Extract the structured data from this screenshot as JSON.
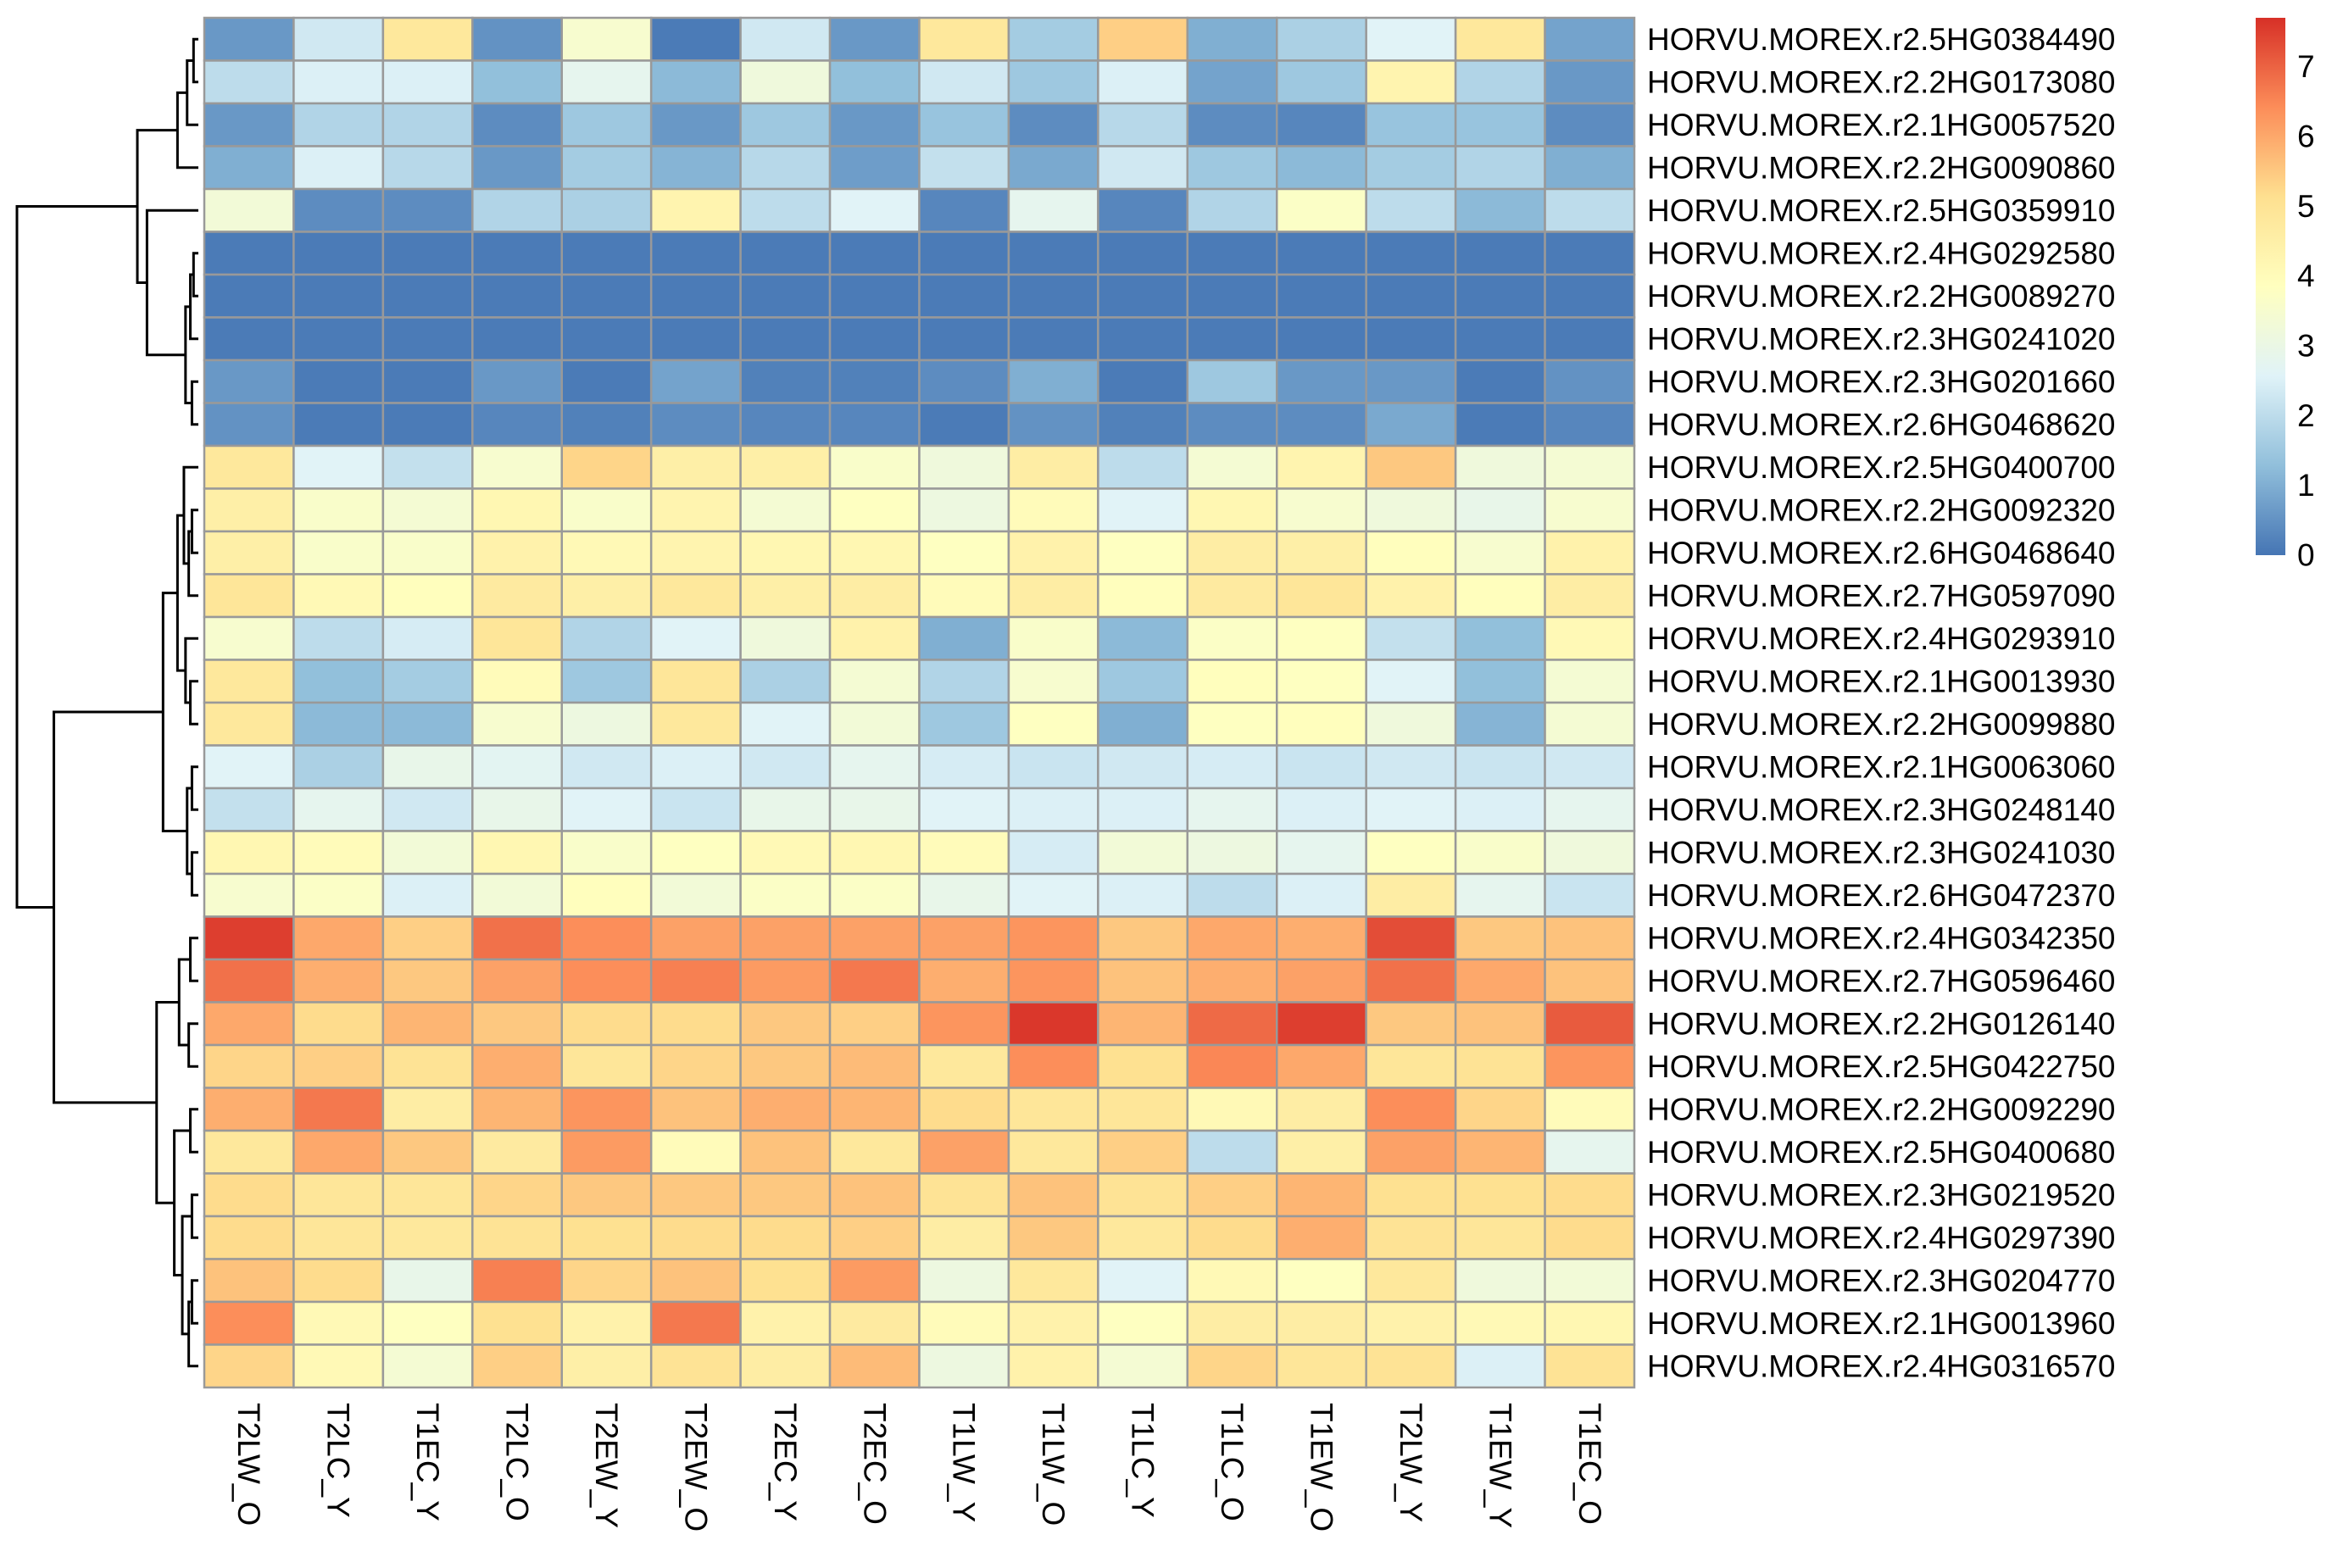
{
  "chart_data": {
    "type": "heatmap",
    "title": "",
    "columns": [
      "T2LW_O",
      "T2LC_Y",
      "T1EC_Y",
      "T2LC_O",
      "T2EW_Y",
      "T2EW_O",
      "T2EC_Y",
      "T2EC_O",
      "T1LW_Y",
      "T1LW_O",
      "T1LC_Y",
      "T1LC_O",
      "T1EW_O",
      "T2LW_Y",
      "T1EW_Y",
      "T1EC_O"
    ],
    "rows": [
      "HORVU.MOREX.r2.5HG0384490",
      "HORVU.MOREX.r2.2HG0173080",
      "HORVU.MOREX.r2.1HG0057520",
      "HORVU.MOREX.r2.2HG0090860",
      "HORVU.MOREX.r2.5HG0359910",
      "HORVU.MOREX.r2.4HG0292580",
      "HORVU.MOREX.r2.2HG0089270",
      "HORVU.MOREX.r2.3HG0241020",
      "HORVU.MOREX.r2.3HG0201660",
      "HORVU.MOREX.r2.6HG0468620",
      "HORVU.MOREX.r2.5HG0400700",
      "HORVU.MOREX.r2.2HG0092320",
      "HORVU.MOREX.r2.6HG0468640",
      "HORVU.MOREX.r2.7HG0597090",
      "HORVU.MOREX.r2.4HG0293910",
      "HORVU.MOREX.r2.1HG0013930",
      "HORVU.MOREX.r2.2HG0099880",
      "HORVU.MOREX.r2.1HG0063060",
      "HORVU.MOREX.r2.3HG0248140",
      "HORVU.MOREX.r2.3HG0241030",
      "HORVU.MOREX.r2.6HG0472370",
      "HORVU.MOREX.r2.4HG0342350",
      "HORVU.MOREX.r2.7HG0596460",
      "HORVU.MOREX.r2.2HG0126140",
      "HORVU.MOREX.r2.5HG0422750",
      "HORVU.MOREX.r2.2HG0092290",
      "HORVU.MOREX.r2.5HG0400680",
      "HORVU.MOREX.r2.3HG0219520",
      "HORVU.MOREX.r2.4HG0297390",
      "HORVU.MOREX.r2.3HG0204770",
      "HORVU.MOREX.r2.1HG0013960",
      "HORVU.MOREX.r2.4HG0316570"
    ],
    "values": [
      [
        0.6,
        2.3,
        4.8,
        0.5,
        3.5,
        0.1,
        2.3,
        0.6,
        4.8,
        1.6,
        5.4,
        1.0,
        1.7,
        2.6,
        4.8,
        0.8
      ],
      [
        2.0,
        2.5,
        2.5,
        1.3,
        2.8,
        1.2,
        3.2,
        1.3,
        2.3,
        1.5,
        2.5,
        0.8,
        1.5,
        4.3,
        1.8,
        0.6
      ],
      [
        0.6,
        1.8,
        1.8,
        0.4,
        1.5,
        0.6,
        1.5,
        0.6,
        1.4,
        0.4,
        1.9,
        0.4,
        0.3,
        1.4,
        1.4,
        0.4
      ],
      [
        1.0,
        2.5,
        1.9,
        0.6,
        1.6,
        1.1,
        1.9,
        0.7,
        2.1,
        0.9,
        2.3,
        1.5,
        1.2,
        1.6,
        1.8,
        1.0
      ],
      [
        3.3,
        0.4,
        0.4,
        1.8,
        1.7,
        4.3,
        2.0,
        2.6,
        0.3,
        2.8,
        0.3,
        1.8,
        3.7,
        2.0,
        1.2,
        2.0
      ],
      [
        0.1,
        0.1,
        0.1,
        0.1,
        0.1,
        0.1,
        0.1,
        0.1,
        0.1,
        0.1,
        0.1,
        0.1,
        0.1,
        0.1,
        0.1,
        0.1
      ],
      [
        0.1,
        0.1,
        0.1,
        0.1,
        0.1,
        0.1,
        0.1,
        0.1,
        0.1,
        0.1,
        0.1,
        0.1,
        0.1,
        0.1,
        0.1,
        0.1
      ],
      [
        0.1,
        0.1,
        0.1,
        0.1,
        0.1,
        0.1,
        0.1,
        0.1,
        0.1,
        0.1,
        0.1,
        0.1,
        0.1,
        0.1,
        0.1,
        0.1
      ],
      [
        0.6,
        0.1,
        0.1,
        0.6,
        0.1,
        0.8,
        0.2,
        0.2,
        0.4,
        1.0,
        0.1,
        1.5,
        0.6,
        0.6,
        0.1,
        0.5
      ],
      [
        0.5,
        0.1,
        0.1,
        0.3,
        0.2,
        0.4,
        0.3,
        0.3,
        0.1,
        0.5,
        0.2,
        0.4,
        0.4,
        0.9,
        0.1,
        0.3
      ],
      [
        4.8,
        2.6,
        2.1,
        3.5,
        5.3,
        4.5,
        4.5,
        3.6,
        3.2,
        4.6,
        2.0,
        3.4,
        4.3,
        5.5,
        3.2,
        3.4
      ],
      [
        4.5,
        3.6,
        3.4,
        4.2,
        3.6,
        4.3,
        3.4,
        3.8,
        3.1,
        4.0,
        2.6,
        4.2,
        3.5,
        3.2,
        2.9,
        3.5
      ],
      [
        4.5,
        3.6,
        3.6,
        4.4,
        4.1,
        4.3,
        4.2,
        4.2,
        3.8,
        4.4,
        3.8,
        4.6,
        4.5,
        3.9,
        3.5,
        4.4
      ],
      [
        4.9,
        4.1,
        3.9,
        4.7,
        4.5,
        4.8,
        4.5,
        4.6,
        4.0,
        4.6,
        3.9,
        4.7,
        4.9,
        4.4,
        3.9,
        4.6
      ],
      [
        3.5,
        2.0,
        2.4,
        4.9,
        1.8,
        2.6,
        3.2,
        4.4,
        1.0,
        3.6,
        1.2,
        3.7,
        3.8,
        2.1,
        1.3,
        4.1
      ],
      [
        4.8,
        1.3,
        1.6,
        4.0,
        1.5,
        4.9,
        1.7,
        3.4,
        1.8,
        3.5,
        1.5,
        3.9,
        3.8,
        2.6,
        1.3,
        3.4
      ],
      [
        4.8,
        1.2,
        1.2,
        3.5,
        3.1,
        4.8,
        2.6,
        3.3,
        1.5,
        3.8,
        1.0,
        3.8,
        3.9,
        3.2,
        1.1,
        3.4
      ],
      [
        2.6,
        1.7,
        2.9,
        2.7,
        2.3,
        2.5,
        2.3,
        2.8,
        2.4,
        2.2,
        2.3,
        2.4,
        2.2,
        2.3,
        2.2,
        2.3
      ],
      [
        2.1,
        2.8,
        2.3,
        2.9,
        2.6,
        2.2,
        2.9,
        2.9,
        2.6,
        2.5,
        2.5,
        2.8,
        2.5,
        2.6,
        2.5,
        2.8
      ],
      [
        4.2,
        4.0,
        3.3,
        4.2,
        3.6,
        3.8,
        4.1,
        4.2,
        4.0,
        2.4,
        3.3,
        3.1,
        2.8,
        3.8,
        3.6,
        3.2
      ],
      [
        3.5,
        3.7,
        2.5,
        3.3,
        3.9,
        3.3,
        3.7,
        3.7,
        2.9,
        2.6,
        2.5,
        2.0,
        2.5,
        4.6,
        2.8,
        2.2
      ],
      [
        7.5,
        6.0,
        5.4,
        6.8,
        6.4,
        6.1,
        6.1,
        6.1,
        6.1,
        6.3,
        5.5,
        6.0,
        5.9,
        7.3,
        5.5,
        5.6
      ],
      [
        6.8,
        5.9,
        5.5,
        6.1,
        6.4,
        6.6,
        6.2,
        6.7,
        5.9,
        6.3,
        5.6,
        5.9,
        6.1,
        6.8,
        6.0,
        5.6
      ],
      [
        6.0,
        5.2,
        5.8,
        5.5,
        5.2,
        5.2,
        5.5,
        5.4,
        6.3,
        7.6,
        5.8,
        6.9,
        7.5,
        5.5,
        5.6,
        7.1
      ],
      [
        5.3,
        5.4,
        5.0,
        5.9,
        4.9,
        5.3,
        5.5,
        5.7,
        4.8,
        6.4,
        5.1,
        6.5,
        6.0,
        4.9,
        5.0,
        6.3
      ],
      [
        5.9,
        6.7,
        4.6,
        5.8,
        6.3,
        5.6,
        5.9,
        5.8,
        5.2,
        4.9,
        4.9,
        4.1,
        4.6,
        6.4,
        5.3,
        4.0
      ],
      [
        4.8,
        6.0,
        5.5,
        4.7,
        6.2,
        4.0,
        5.6,
        4.8,
        6.1,
        4.8,
        5.4,
        2.0,
        4.5,
        6.1,
        5.8,
        2.8
      ],
      [
        5.2,
        4.9,
        4.9,
        5.3,
        5.5,
        5.5,
        5.5,
        5.6,
        5.0,
        5.6,
        5.0,
        5.4,
        5.8,
        5.1,
        5.1,
        5.2
      ],
      [
        5.2,
        4.9,
        4.8,
        5.0,
        5.1,
        5.2,
        5.2,
        5.4,
        4.6,
        5.5,
        4.8,
        5.2,
        5.9,
        5.0,
        4.9,
        5.2
      ],
      [
        5.6,
        5.2,
        2.9,
        6.6,
        5.3,
        5.6,
        5.1,
        6.2,
        3.1,
        4.8,
        2.6,
        4.1,
        3.8,
        4.8,
        3.2,
        3.3
      ],
      [
        6.4,
        4.1,
        3.8,
        5.1,
        4.4,
        6.7,
        4.4,
        4.7,
        4.0,
        4.4,
        3.8,
        4.6,
        4.6,
        4.4,
        4.1,
        4.2
      ],
      [
        5.3,
        4.1,
        3.4,
        5.4,
        4.5,
        5.0,
        4.6,
        5.7,
        3.1,
        4.4,
        3.4,
        5.3,
        4.9,
        5.0,
        2.5,
        5.0
      ]
    ],
    "color_scale": {
      "min": 0,
      "max": 7.7,
      "colors": [
        "#4575b4",
        "#91bfdb",
        "#e0f3f8",
        "#ffffbf",
        "#fee090",
        "#fc8d59",
        "#d73027"
      ]
    },
    "legend": {
      "ticks": [
        "0",
        "1",
        "2",
        "3",
        "4",
        "5",
        "6",
        "7"
      ],
      "placement": "top-right"
    },
    "row_dendrogram": true,
    "column_dendrogram": false,
    "cell_border_color": "#999999"
  }
}
